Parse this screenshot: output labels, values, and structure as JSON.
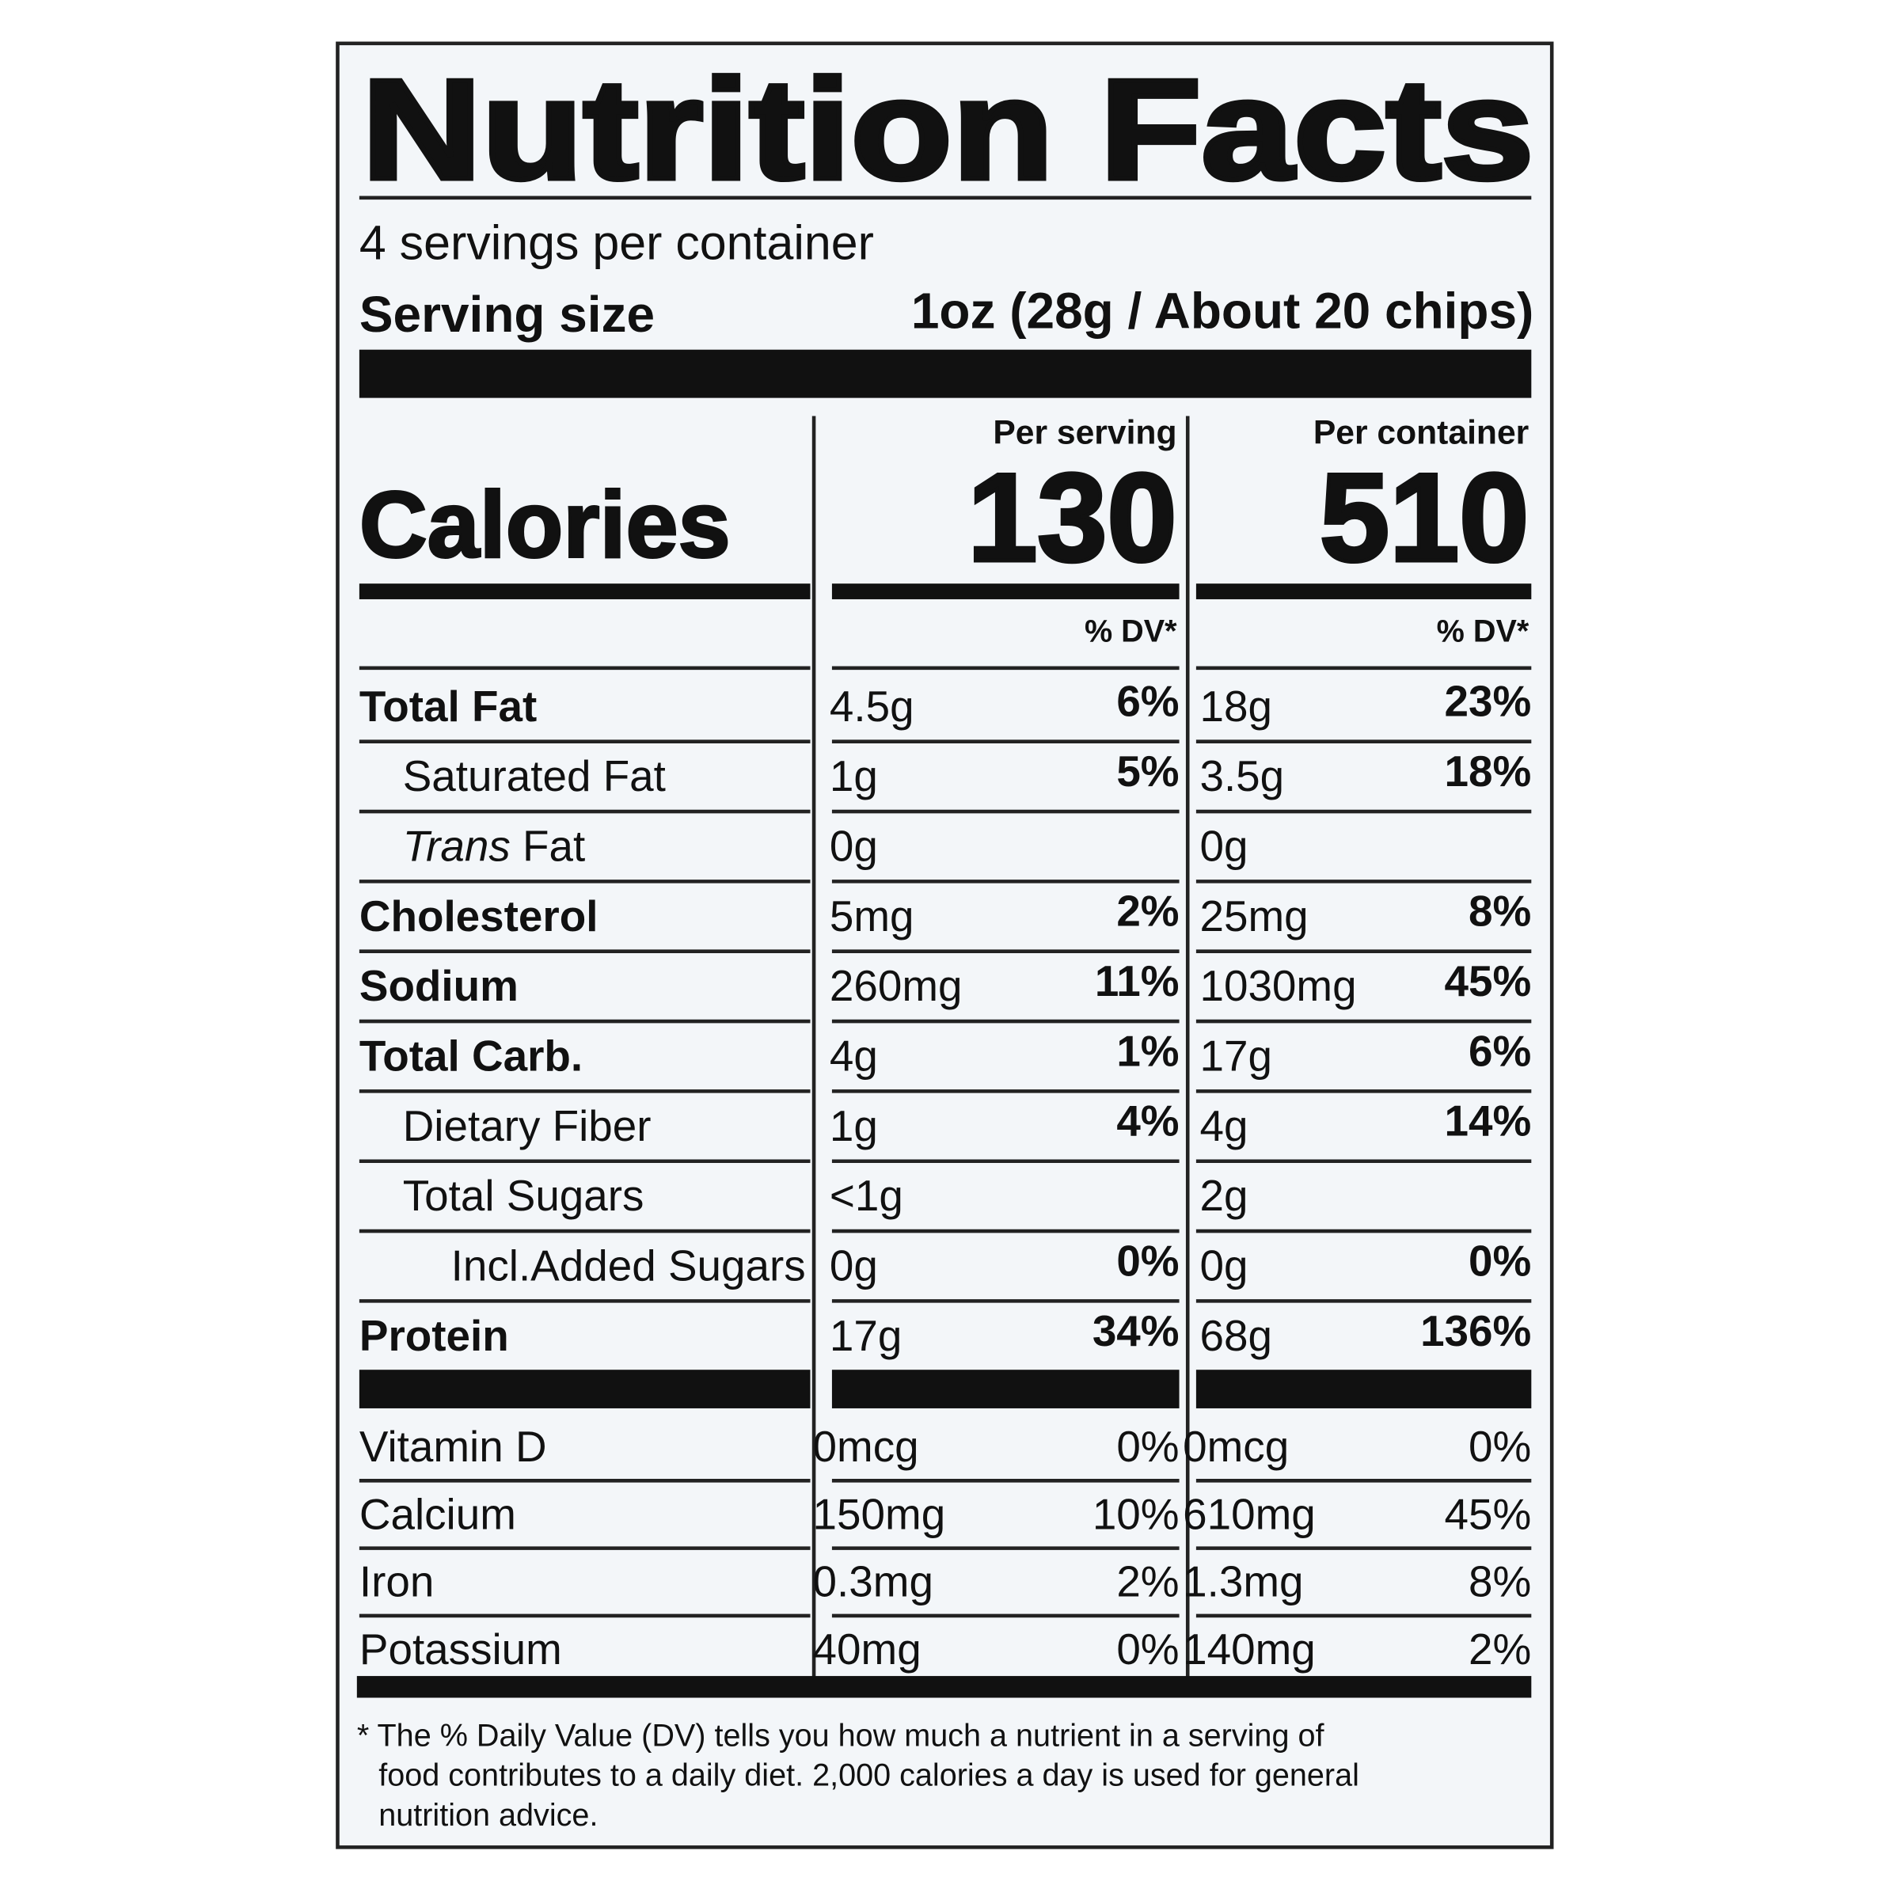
{
  "header": {
    "title": "Nutrition Facts",
    "servings": "4 servings per container",
    "serving_size_label": "Serving size",
    "serving_size": "1oz (28g / About 20 chips)"
  },
  "columns": [
    "Per serving",
    "Per container"
  ],
  "calories": {
    "label": "Calories",
    "values": [
      130,
      510
    ]
  },
  "dv_header": [
    "% DV*",
    "% DV*"
  ],
  "nutrients": [
    {
      "name": "Total Fat",
      "bold": true,
      "level": 0,
      "per_serving": {
        "amount": "4.5g",
        "dv": "6%"
      },
      "per_container": {
        "amount": "18g",
        "dv": "23%"
      }
    },
    {
      "name": "Saturated Fat",
      "bold": false,
      "level": 1,
      "per_serving": {
        "amount": "1g",
        "dv": "5%"
      },
      "per_container": {
        "amount": "3.5g",
        "dv": "18%"
      }
    },
    {
      "name_italic": "Trans",
      "name": "Fat",
      "bold": false,
      "level": 1,
      "per_serving": {
        "amount": "0g"
      },
      "per_container": {
        "amount": "0g"
      }
    },
    {
      "name": "Cholesterol",
      "bold": true,
      "level": 0,
      "per_serving": {
        "amount": "5mg",
        "dv": "2%"
      },
      "per_container": {
        "amount": "25mg",
        "dv": "8%"
      }
    },
    {
      "name": "Sodium",
      "bold": true,
      "level": 0,
      "per_serving": {
        "amount": "260mg",
        "dv": "11%"
      },
      "per_container": {
        "amount": "1030mg",
        "dv": "45%"
      }
    },
    {
      "name": "Total Carb.",
      "bold": true,
      "level": 0,
      "per_serving": {
        "amount": "4g",
        "dv": "1%"
      },
      "per_container": {
        "amount": "17g",
        "dv": "6%"
      }
    },
    {
      "name": "Dietary Fiber",
      "bold": false,
      "level": 1,
      "per_serving": {
        "amount": "1g",
        "dv": "4%"
      },
      "per_container": {
        "amount": "4g",
        "dv": "14%"
      }
    },
    {
      "name": "Total Sugars",
      "bold": false,
      "level": 1,
      "per_serving": {
        "amount": "<1g"
      },
      "per_container": {
        "amount": "2g"
      }
    },
    {
      "name": "Incl.Added Sugars",
      "bold": false,
      "level": 2,
      "per_serving": {
        "amount": "0g",
        "dv": "0%"
      },
      "per_container": {
        "amount": "0g",
        "dv": "0%"
      }
    },
    {
      "name": "Protein",
      "bold": true,
      "level": 0,
      "per_serving": {
        "amount": "17g",
        "dv": "34%"
      },
      "per_container": {
        "amount": "68g",
        "dv": "136%"
      }
    }
  ],
  "vitamins": [
    {
      "name": "Vitamin D",
      "per_serving": {
        "amount": "0mcg",
        "dv": "0%"
      },
      "per_container": {
        "amount": "0mcg",
        "dv": "0%"
      }
    },
    {
      "name": "Calcium",
      "per_serving": {
        "amount": "150mg",
        "dv": "10%"
      },
      "per_container": {
        "amount": "610mg",
        "dv": "45%"
      }
    },
    {
      "name": "Iron",
      "per_serving": {
        "amount": "0.3mg",
        "dv": "2%"
      },
      "per_container": {
        "amount": "1.3mg",
        "dv": "8%"
      }
    },
    {
      "name": "Potassium",
      "per_serving": {
        "amount": "40mg",
        "dv": "0%"
      },
      "per_container": {
        "amount": "140mg",
        "dv": "2%"
      }
    }
  ],
  "footnote": [
    "* The % Daily Value (DV) tells you how much a nutrient in a serving of",
    "food contributes to a daily diet. 2,000 calories a day is used for general",
    "nutrition advice."
  ]
}
